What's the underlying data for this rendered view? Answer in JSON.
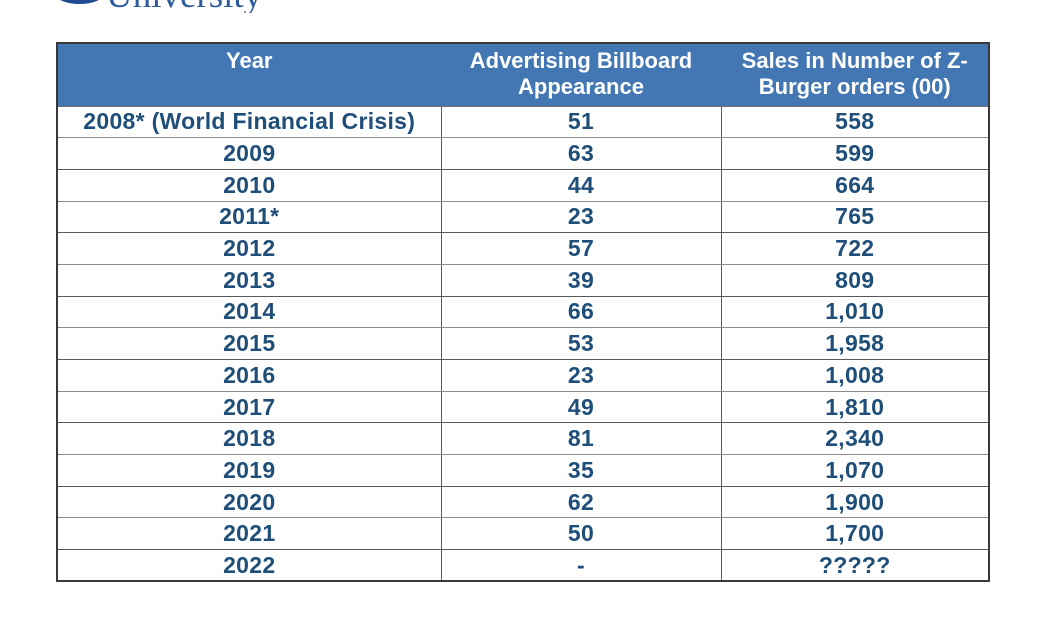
{
  "logo": {
    "university_text": "University"
  },
  "table": {
    "columns": [
      "Year",
      "Advertising Billboard Appearance",
      "Sales in Number of Z-Burger orders (00)"
    ],
    "rows": [
      [
        "2008* (World Financial Crisis)",
        "51",
        "558"
      ],
      [
        "2009",
        "63",
        "599"
      ],
      [
        "2010",
        "44",
        "664"
      ],
      [
        "2011*",
        "23",
        "765"
      ],
      [
        "2012",
        "57",
        "722"
      ],
      [
        "2013",
        "39",
        "809"
      ],
      [
        "2014",
        "66",
        "1,010"
      ],
      [
        "2015",
        "53",
        "1,958"
      ],
      [
        "2016",
        "23",
        "1,008"
      ],
      [
        "2017",
        "49",
        "1,810"
      ],
      [
        "2018",
        "81",
        "2,340"
      ],
      [
        "2019",
        "35",
        "1,070"
      ],
      [
        "2020",
        "62",
        "1,900"
      ],
      [
        "2021",
        "50",
        "1,700"
      ],
      [
        "2022",
        "-",
        "?????"
      ]
    ],
    "colors": {
      "header_bg": "#4377B3",
      "header_text": "#FFFFFF",
      "cell_text": "#1F4E79",
      "logo_text": "#2E5C9E"
    }
  }
}
